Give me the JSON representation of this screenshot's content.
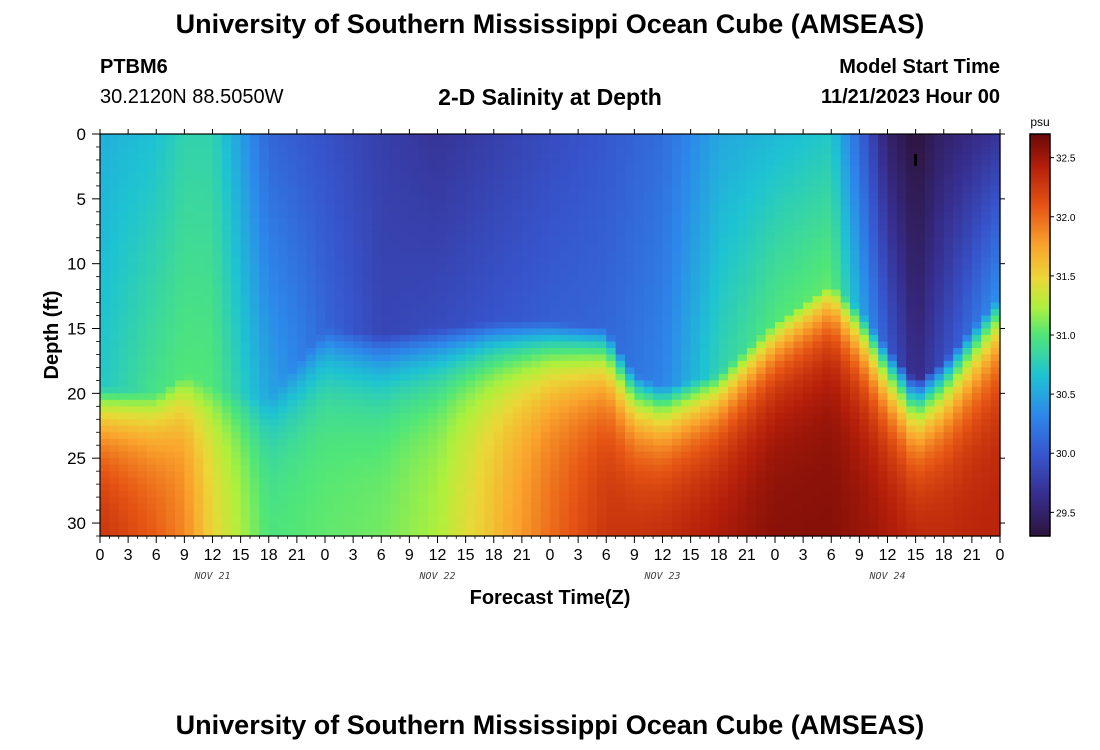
{
  "header": {
    "title": "University of Southern Mississippi Ocean Cube (AMSEAS)",
    "station_id": "PTBM6",
    "coordinates": "30.2120N  88.5050W",
    "plot_title": "2-D Salinity at Depth",
    "model_start_label": "Model Start Time",
    "model_start_value": "11/21/2023 Hour 00"
  },
  "footer": {
    "repeated_title": "University of Southern Mississippi Ocean Cube (AMSEAS)"
  },
  "chart_data": {
    "type": "heatmap",
    "title": "2-D Salinity at Depth",
    "xlabel": "Forecast Time(Z)",
    "ylabel": "Depth (ft)",
    "x_range_hours": [
      0,
      96
    ],
    "ylim": [
      31,
      0
    ],
    "x_tick_labels": [
      "0",
      "3",
      "6",
      "9",
      "12",
      "15",
      "18",
      "21",
      "0",
      "3",
      "6",
      "9",
      "12",
      "15",
      "18",
      "21",
      "0",
      "3",
      "6",
      "9",
      "12",
      "15",
      "18",
      "21",
      "0",
      "3",
      "6",
      "9",
      "12",
      "15",
      "18",
      "21",
      "0"
    ],
    "date_labels": [
      "NOV 21",
      "NOV 22",
      "NOV 23",
      "NOV 24"
    ],
    "y_ticks": [
      0,
      5,
      10,
      15,
      20,
      25,
      30
    ],
    "y_tick_labels": [
      "0",
      "5",
      "10",
      "15",
      "20",
      "25",
      "30"
    ],
    "colorbar": {
      "unit": "psu",
      "min": 29.3,
      "max": 32.7,
      "ticks": [
        29.5,
        30.0,
        30.5,
        31.0,
        31.5,
        32.0,
        32.5
      ],
      "tick_labels": [
        "29.5",
        "30.0",
        "30.5",
        "31.0",
        "31.5",
        "32.0",
        "32.5"
      ]
    },
    "surface_salinity_psu_by_hour": [
      [
        0,
        30.55
      ],
      [
        6,
        30.65
      ],
      [
        9,
        30.8
      ],
      [
        12,
        30.8
      ],
      [
        18,
        30.1
      ],
      [
        24,
        29.95
      ],
      [
        30,
        29.8
      ],
      [
        36,
        29.7
      ],
      [
        48,
        29.9
      ],
      [
        54,
        30.0
      ],
      [
        60,
        30.15
      ],
      [
        66,
        30.5
      ],
      [
        72,
        30.6
      ],
      [
        78,
        30.7
      ],
      [
        84,
        29.5
      ],
      [
        87,
        29.3
      ],
      [
        90,
        29.5
      ],
      [
        96,
        29.7
      ]
    ],
    "mid_salinity_psu_by_hour": [
      [
        0,
        30.7
      ],
      [
        6,
        30.95
      ],
      [
        9,
        31.0
      ],
      [
        12,
        31.0
      ],
      [
        18,
        30.5
      ],
      [
        24,
        30.1
      ],
      [
        30,
        29.85
      ],
      [
        36,
        29.9
      ],
      [
        48,
        30.05
      ],
      [
        54,
        30.1
      ],
      [
        60,
        30.3
      ],
      [
        66,
        30.8
      ],
      [
        72,
        31.0
      ],
      [
        78,
        31.05
      ],
      [
        84,
        30.0
      ],
      [
        87,
        29.6
      ],
      [
        90,
        29.9
      ],
      [
        96,
        30.4
      ]
    ],
    "bottom_salinity_psu_by_hour": [
      [
        0,
        32.35
      ],
      [
        6,
        32.1
      ],
      [
        9,
        31.9
      ],
      [
        12,
        31.5
      ],
      [
        18,
        31.0
      ],
      [
        24,
        31.05
      ],
      [
        30,
        31.1
      ],
      [
        36,
        31.25
      ],
      [
        48,
        32.0
      ],
      [
        54,
        32.3
      ],
      [
        60,
        32.4
      ],
      [
        66,
        32.5
      ],
      [
        72,
        32.6
      ],
      [
        78,
        32.6
      ],
      [
        84,
        32.5
      ],
      [
        87,
        32.45
      ],
      [
        90,
        32.4
      ],
      [
        96,
        32.4
      ]
    ],
    "halocline_depth_ft_by_hour": [
      [
        0,
        21
      ],
      [
        6,
        21.5
      ],
      [
        9,
        20
      ],
      [
        12,
        21
      ],
      [
        18,
        22
      ],
      [
        24,
        16.5
      ],
      [
        30,
        17
      ],
      [
        36,
        16.5
      ],
      [
        42,
        16
      ],
      [
        48,
        16
      ],
      [
        54,
        16.5
      ],
      [
        57,
        20
      ],
      [
        60,
        21
      ],
      [
        66,
        20
      ],
      [
        72,
        16
      ],
      [
        78,
        13
      ],
      [
        81,
        15
      ],
      [
        84,
        18
      ],
      [
        87,
        20.5
      ],
      [
        90,
        19
      ],
      [
        96,
        14
      ]
    ],
    "marker": {
      "hour": 87,
      "depth_ft": 2
    }
  }
}
